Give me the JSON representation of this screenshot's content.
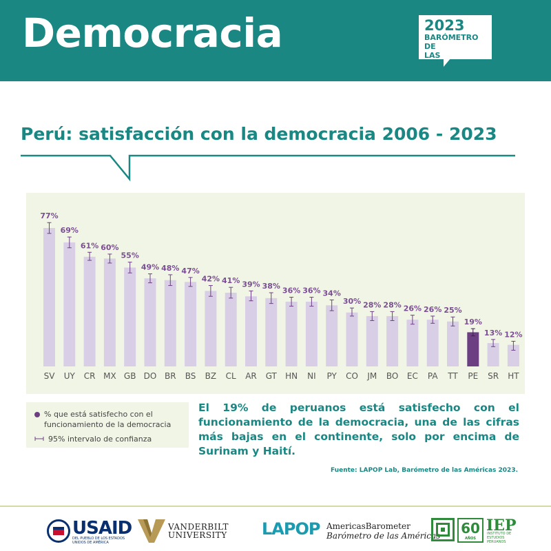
{
  "header": {
    "title": "Democracia",
    "badge_year": "2023",
    "badge_line1": "BARÓMETRO DE",
    "badge_line2": "LAS AMÉRICAS"
  },
  "subtitle": "Perú: satisfacción con la democracia 2006 - 2023",
  "legend": {
    "series_label": "% que está satisfecho con el funcionamiento de la democracia",
    "ci_label": "95% intervalo de confianza"
  },
  "summary": "El 19% de peruanos está satisfecho con el funcionamiento de la democracia, una de las cifras más bajas en el continente, solo por encima de Surinam y Haití.",
  "source": "Fuente: LAPOP Lab, Barómetro de las Américas 2023.",
  "colors": {
    "teal": "#1a8783",
    "bar": "#d8cfe6",
    "highlight_bar": "#6b3f82",
    "label": "#7a4e93",
    "panel": "#f1f5e6"
  },
  "logos": {
    "usaid": "USAID",
    "usaid_sub": "DEL PUEBLO DE LOS ESTADOS UNIDOS DE AMÉRICA",
    "vanderbilt_1": "VANDERBILT",
    "vanderbilt_2": "UNIVERSITY",
    "lapop": "LAPOP",
    "americas_1": "AmericasBarometer",
    "americas_2": "Barómetro de las Américas",
    "iep_60": "60",
    "iep_anos": "AÑOS",
    "iep": "IEP",
    "iep_sub": "INSTITUTO DE ESTUDIOS PERUANOS"
  },
  "chart_data": {
    "type": "bar",
    "categories": [
      "SV",
      "UY",
      "CR",
      "MX",
      "GB",
      "DO",
      "BR",
      "BS",
      "BZ",
      "CL",
      "AR",
      "GT",
      "HN",
      "NI",
      "PY",
      "CO",
      "JM",
      "BO",
      "EC",
      "PA",
      "TT",
      "PE",
      "SR",
      "HT"
    ],
    "values": [
      77,
      69,
      61,
      60,
      55,
      49,
      48,
      47,
      42,
      41,
      39,
      38,
      36,
      36,
      34,
      30,
      28,
      28,
      26,
      26,
      25,
      19,
      13,
      12
    ],
    "value_labels": [
      "77%",
      "69%",
      "61%",
      "60%",
      "55%",
      "49%",
      "48%",
      "47%",
      "42%",
      "41%",
      "39%",
      "38%",
      "36%",
      "36%",
      "34%",
      "30%",
      "28%",
      "28%",
      "26%",
      "26%",
      "25%",
      "19%",
      "13%",
      "12%"
    ],
    "ci_low": [
      74,
      66,
      59,
      57.5,
      52,
      46.5,
      45,
      44.5,
      39,
      38,
      36.5,
      35,
      33.5,
      33.5,
      31,
      28,
      25.5,
      25.5,
      23.5,
      24,
      22.5,
      17,
      11,
      9
    ],
    "ci_high": [
      80,
      72,
      63.5,
      62.5,
      58,
      51.5,
      51,
      49.5,
      45,
      44,
      42,
      41,
      38.5,
      38.5,
      37,
      32.5,
      30.5,
      30.5,
      28.5,
      28,
      27.5,
      21,
      15,
      14
    ],
    "highlight": "PE",
    "ylim": [
      0,
      82
    ]
  }
}
